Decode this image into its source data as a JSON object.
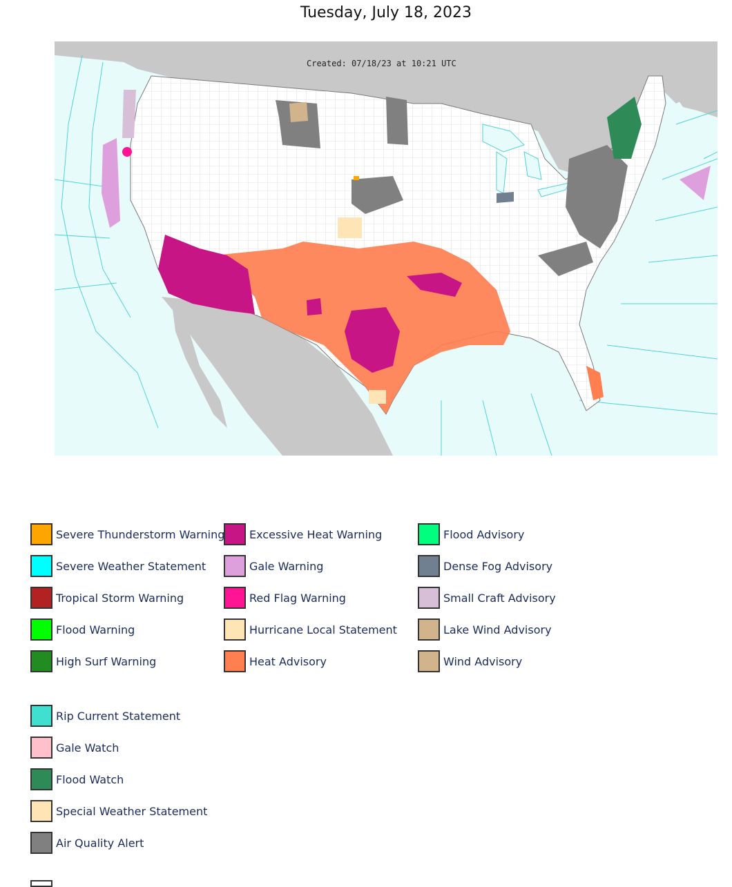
{
  "title": "Tuesday, July 18, 2023",
  "map": {
    "created_label": "Created: 07/18/23 at 10:21 UTC",
    "colors": {
      "ocean": "#e8fbfb",
      "marine_zone_lines": "#4fd3d3",
      "land_foreign": "#c8c8c8",
      "land_us": "#ffffff",
      "county_lines": "#b0b0b0"
    }
  },
  "legend": {
    "columns": [
      [
        {
          "label": "Severe Thunderstorm Warning",
          "color": "#ffa500"
        },
        {
          "label": "Severe Weather Statement",
          "color": "#00ffff"
        },
        {
          "label": "Tropical Storm Warning",
          "color": "#b22222"
        },
        {
          "label": "Flood Warning",
          "color": "#00ff00"
        },
        {
          "label": "High Surf Warning",
          "color": "#228b22"
        }
      ],
      [
        {
          "label": "Excessive Heat Warning",
          "color": "#c71585"
        },
        {
          "label": "Gale Warning",
          "color": "#dda0dd"
        },
        {
          "label": "Red Flag Warning",
          "color": "#ff1493"
        },
        {
          "label": "Hurricane Local Statement",
          "color": "#ffe4b5"
        },
        {
          "label": "Heat Advisory",
          "color": "#ff7f50"
        }
      ],
      [
        {
          "label": "Flood Advisory",
          "color": "#00ff7f"
        },
        {
          "label": "Dense Fog Advisory",
          "color": "#708090"
        },
        {
          "label": "Small Craft Advisory",
          "color": "#d8bfd8"
        },
        {
          "label": "Lake Wind Advisory",
          "color": "#d2b48c"
        },
        {
          "label": "Wind Advisory",
          "color": "#d2b48c"
        }
      ]
    ],
    "extra": [
      {
        "label": "Rip Current Statement",
        "color": "#40e0d0"
      },
      {
        "label": "Gale Watch",
        "color": "#ffc0cb"
      },
      {
        "label": "Flood Watch",
        "color": "#2e8b57"
      },
      {
        "label": "Special Weather Statement",
        "color": "#ffe4b5"
      },
      {
        "label": "Air Quality Alert",
        "color": "#808080"
      }
    ]
  }
}
